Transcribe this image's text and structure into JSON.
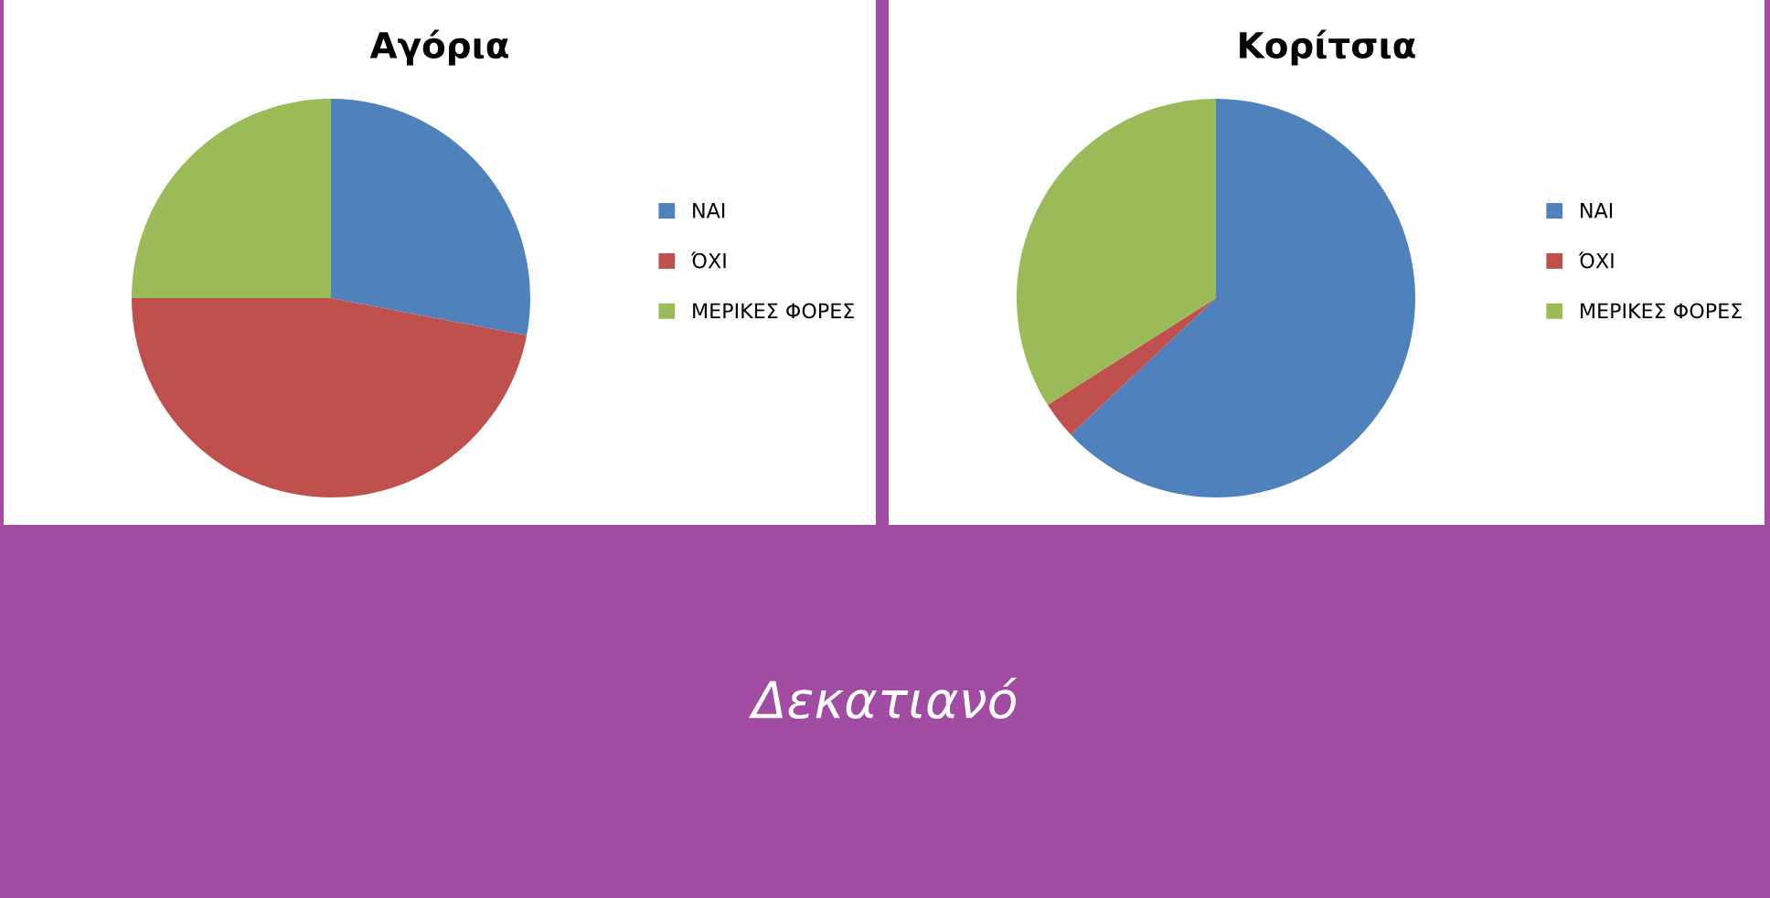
{
  "chart_data": [
    {
      "type": "pie",
      "title": "Αγόρια",
      "categories": [
        "ΝΑΙ",
        "ΌΧΙ",
        "ΜΕΡΙΚΕΣ ΦΟΡΕΣ"
      ],
      "values": [
        28,
        47,
        25
      ],
      "colors": [
        "#4f81bd",
        "#c0504d",
        "#9bbb59"
      ],
      "legend": "right",
      "annotations": [
        "Δεκατιανό"
      ]
    },
    {
      "type": "pie",
      "title": "Κορίτσια",
      "categories": [
        "ΝΑΙ",
        "ΌΧΙ",
        "ΜΕΡΙΚΕΣ ΦΟΡΕΣ"
      ],
      "values": [
        63,
        3,
        34
      ],
      "colors": [
        "#4f81bd",
        "#c0504d",
        "#9bbb59"
      ],
      "legend": "right"
    }
  ]
}
